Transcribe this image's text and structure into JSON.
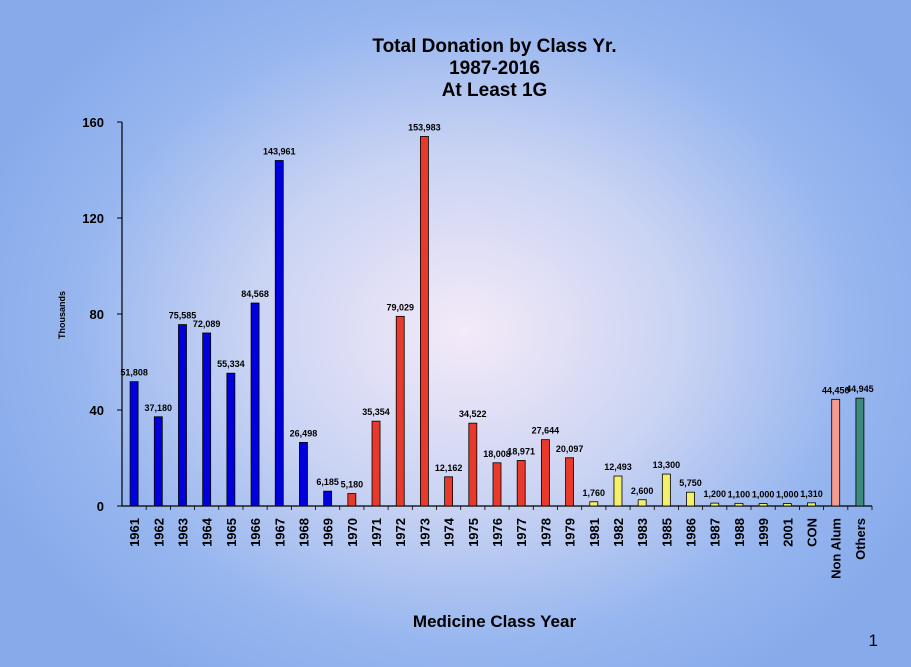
{
  "chart_data": {
    "type": "bar",
    "title": [
      "Total Donation by Class Yr.",
      "1987-2016",
      "At Least 1G"
    ],
    "xlabel": "Medicine Class Year",
    "ylabel": "Thousands",
    "ylim": [
      0,
      160
    ],
    "yticks": [
      0,
      40,
      80,
      120,
      160
    ],
    "grid": false,
    "categories": [
      "1961",
      "1962",
      "1963",
      "1964",
      "1965",
      "1966",
      "1967",
      "1968",
      "1969",
      "1970",
      "1971",
      "1972",
      "1973",
      "1974",
      "1975",
      "1976",
      "1977",
      "1978",
      "1979",
      "1981",
      "1982",
      "1983",
      "1985",
      "1986",
      "1987",
      "1988",
      "1999",
      "2001",
      "CON",
      "Non Alum",
      "Others"
    ],
    "values": [
      51.808,
      37.18,
      75.585,
      72.089,
      55.334,
      84.568,
      143.961,
      26.498,
      6.185,
      5.18,
      35.354,
      79.029,
      153.983,
      12.162,
      34.522,
      18.008,
      18.971,
      27.644,
      20.097,
      1.76,
      12.493,
      2.6,
      13.3,
      5.75,
      1.2,
      1.1,
      1.0,
      1.0,
      1.31,
      44.45,
      44.945
    ],
    "data_labels": [
      "51,808",
      "37,180",
      "75,585",
      "72,089",
      "55,334",
      "84,568",
      "143,961",
      "26,498",
      "6,185",
      "5,180",
      "35,354",
      "79,029",
      "153,983",
      "12,162",
      "34,522",
      "18,008",
      "18,971",
      "27,644",
      "20,097",
      "1,760",
      "12,493",
      "2,600",
      "13,300",
      "5,750",
      "1,200",
      "1,100",
      "1,000",
      "1,000",
      "1,310",
      "44,450",
      "44,945"
    ],
    "bar_colors": [
      "#0000dd",
      "#0000dd",
      "#0000dd",
      "#0000dd",
      "#0000dd",
      "#0000dd",
      "#0000dd",
      "#0000dd",
      "#0000dd",
      "#e8392b",
      "#e8392b",
      "#e8392b",
      "#e8392b",
      "#e8392b",
      "#e8392b",
      "#e8392b",
      "#e8392b",
      "#e8392b",
      "#e8392b",
      "#f4f06a",
      "#f4f06a",
      "#f4f06a",
      "#f4f06a",
      "#f4f06a",
      "#f4f06a",
      "#f4f06a",
      "#f4f06a",
      "#f4f06a",
      "#f4f06a",
      "#f59a8e",
      "#3e8a7c"
    ]
  },
  "page_number": "1"
}
